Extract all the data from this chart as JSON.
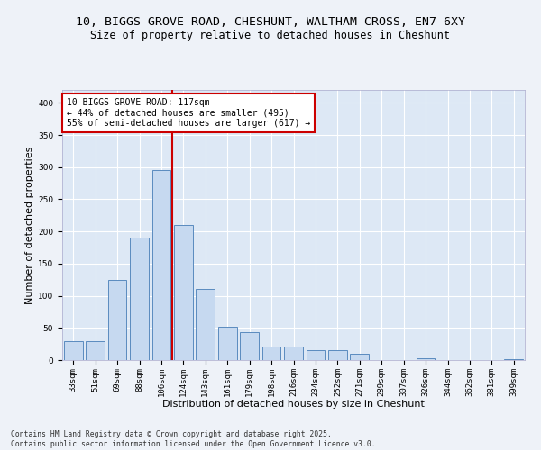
{
  "title_line1": "10, BIGGS GROVE ROAD, CHESHUNT, WALTHAM CROSS, EN7 6XY",
  "title_line2": "Size of property relative to detached houses in Cheshunt",
  "xlabel": "Distribution of detached houses by size in Cheshunt",
  "ylabel": "Number of detached properties",
  "categories": [
    "33sqm",
    "51sqm",
    "69sqm",
    "88sqm",
    "106sqm",
    "124sqm",
    "143sqm",
    "161sqm",
    "179sqm",
    "198sqm",
    "216sqm",
    "234sqm",
    "252sqm",
    "271sqm",
    "289sqm",
    "307sqm",
    "326sqm",
    "344sqm",
    "362sqm",
    "381sqm",
    "399sqm"
  ],
  "values": [
    30,
    30,
    125,
    190,
    295,
    210,
    110,
    52,
    43,
    21,
    21,
    15,
    15,
    10,
    0,
    0,
    3,
    0,
    0,
    0,
    2
  ],
  "bar_color": "#c6d9f0",
  "bar_edge_color": "#5a8bbf",
  "vline_index": 5,
  "vline_color": "#cc0000",
  "annotation_text": "10 BIGGS GROVE ROAD: 117sqm\n← 44% of detached houses are smaller (495)\n55% of semi-detached houses are larger (617) →",
  "annotation_box_color": "#ffffff",
  "annotation_box_edge_color": "#cc0000",
  "ylim": [
    0,
    420
  ],
  "yticks": [
    0,
    50,
    100,
    150,
    200,
    250,
    300,
    350,
    400
  ],
  "background_color": "#eef2f8",
  "plot_bg_color": "#dde8f5",
  "footer_text": "Contains HM Land Registry data © Crown copyright and database right 2025.\nContains public sector information licensed under the Open Government Licence v3.0.",
  "title_fontsize": 9.5,
  "subtitle_fontsize": 8.5,
  "label_fontsize": 8,
  "tick_fontsize": 6.5,
  "footer_fontsize": 5.8,
  "annot_fontsize": 7.0
}
